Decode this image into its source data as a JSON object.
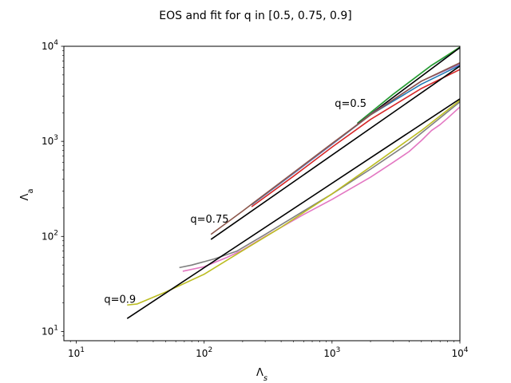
{
  "chart_data": {
    "type": "line",
    "title": "EOS and fit for q in [0.5, 0.75, 0.9]",
    "xlabel": "Λ",
    "xlabel_sub": "s",
    "ylabel": "Λ",
    "ylabel_sub": "a",
    "xscale": "log",
    "yscale": "log",
    "xlim": [
      8,
      10000
    ],
    "ylim": [
      8,
      10000
    ],
    "grid": false,
    "x_ticks": [
      {
        "value": 10,
        "base": "10",
        "exp": "1"
      },
      {
        "value": 100,
        "base": "10",
        "exp": "2"
      },
      {
        "value": 1000,
        "base": "10",
        "exp": "3"
      },
      {
        "value": 10000,
        "base": "10",
        "exp": "4"
      }
    ],
    "y_ticks": [
      {
        "value": 10,
        "base": "10",
        "exp": "1"
      },
      {
        "value": 100,
        "base": "10",
        "exp": "2"
      },
      {
        "value": 1000,
        "base": "10",
        "exp": "3"
      },
      {
        "value": 10000,
        "base": "10",
        "exp": "4"
      }
    ],
    "annotations": [
      {
        "text": "q=0.5",
        "x": 1050,
        "y": 2300
      },
      {
        "text": "q=0.75",
        "x": 78,
        "y": 140
      },
      {
        "text": "q=0.9",
        "x": 16.5,
        "y": 20
      }
    ],
    "series": [
      {
        "color": "#1f77b4",
        "points": [
          [
            1580,
            1550
          ],
          [
            3000,
            3120
          ],
          [
            6000,
            6300
          ],
          [
            10000,
            9600
          ]
        ]
      },
      {
        "color": "#2ca02c",
        "points": [
          [
            1580,
            1550
          ],
          [
            3000,
            3120
          ],
          [
            6000,
            6300
          ],
          [
            10000,
            9800
          ]
        ]
      },
      {
        "color": "#000000",
        "points": [
          [
            1580,
            1520
          ],
          [
            10000,
            9700
          ]
        ]
      },
      {
        "color": "#1f77b4",
        "points": [
          [
            235,
            215
          ],
          [
            500,
            460
          ],
          [
            1000,
            930
          ],
          [
            2000,
            1900
          ],
          [
            5000,
            4000
          ],
          [
            10000,
            6300
          ]
        ]
      },
      {
        "color": "#9467bd",
        "points": [
          [
            235,
            218
          ],
          [
            500,
            465
          ],
          [
            1000,
            940
          ],
          [
            2000,
            1920
          ],
          [
            5000,
            4300
          ],
          [
            10000,
            6500
          ]
        ]
      },
      {
        "color": "#d62728",
        "points": [
          [
            235,
            205
          ],
          [
            500,
            430
          ],
          [
            1000,
            870
          ],
          [
            2000,
            1700
          ],
          [
            5000,
            3600
          ],
          [
            10000,
            5700
          ]
        ]
      },
      {
        "color": "#8c564b",
        "points": [
          [
            113,
            105
          ],
          [
            200,
            185
          ],
          [
            500,
            470
          ],
          [
            1000,
            950
          ],
          [
            2000,
            1900
          ],
          [
            5000,
            4300
          ],
          [
            10000,
            6700
          ]
        ]
      },
      {
        "color": "#000000",
        "points": [
          [
            113,
            93
          ],
          [
            10000,
            6200
          ]
        ]
      },
      {
        "color": "#7f7f7f",
        "points": [
          [
            64,
            47
          ],
          [
            80,
            50
          ],
          [
            120,
            58
          ],
          [
            180,
            70
          ],
          [
            300,
            105
          ],
          [
            600,
            185
          ],
          [
            1000,
            280
          ],
          [
            2000,
            510
          ],
          [
            4000,
            960
          ],
          [
            10000,
            2600
          ]
        ]
      },
      {
        "color": "#e377c2",
        "points": [
          [
            68,
            43
          ],
          [
            100,
            48
          ],
          [
            150,
            60
          ],
          [
            200,
            72
          ],
          [
            300,
            100
          ],
          [
            600,
            170
          ],
          [
            1000,
            245
          ],
          [
            2000,
            420
          ],
          [
            3000,
            600
          ],
          [
            4000,
            780
          ],
          [
            5000,
            1020
          ],
          [
            6000,
            1300
          ],
          [
            7000,
            1500
          ],
          [
            8000,
            1750
          ],
          [
            10000,
            2300
          ]
        ]
      },
      {
        "color": "#bcbd22",
        "points": [
          [
            25,
            19
          ],
          [
            30,
            19.5
          ],
          [
            50,
            26
          ],
          [
            100,
            40
          ],
          [
            200,
            71
          ],
          [
            400,
            125
          ],
          [
            1000,
            280
          ],
          [
            2000,
            540
          ],
          [
            5000,
            1300
          ],
          [
            10000,
            2700
          ]
        ]
      },
      {
        "color": "#000000",
        "points": [
          [
            25,
            13.7
          ],
          [
            10000,
            2800
          ]
        ]
      }
    ]
  }
}
